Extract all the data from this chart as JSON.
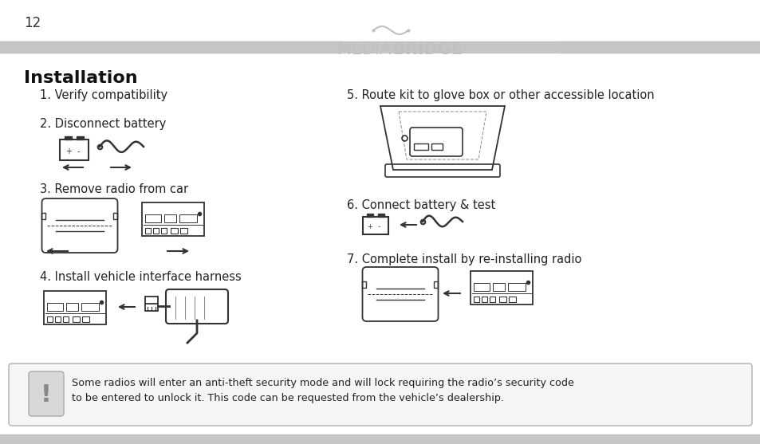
{
  "page_number": "12",
  "background_color": "#ffffff",
  "header_bar_color": "#c5c5c5",
  "footer_bar_color": "#c5c5c5",
  "title": "Installation",
  "body_fontsize": 10.5,
  "steps_left": [
    "1. Verify compatibility",
    "2. Disconnect battery",
    "3. Remove radio from car",
    "4. Install vehicle interface harness"
  ],
  "steps_right": [
    "5. Route kit to glove box or other accessible location",
    "6. Connect battery & test",
    "7. Complete install by re-installing radio"
  ],
  "warning_text": "Some radios will enter an anti-theft security mode and will lock requiring the radio’s security code\nto be entered to unlock it. This code can be requested from the vehicle’s dealership.",
  "warning_box_color": "#f5f5f5",
  "warning_border_color": "#bbbbbb",
  "text_color": "#222222",
  "icon_color": "#333333",
  "light_gray": "#b8b8b8",
  "media_color": "#c0c0c0"
}
